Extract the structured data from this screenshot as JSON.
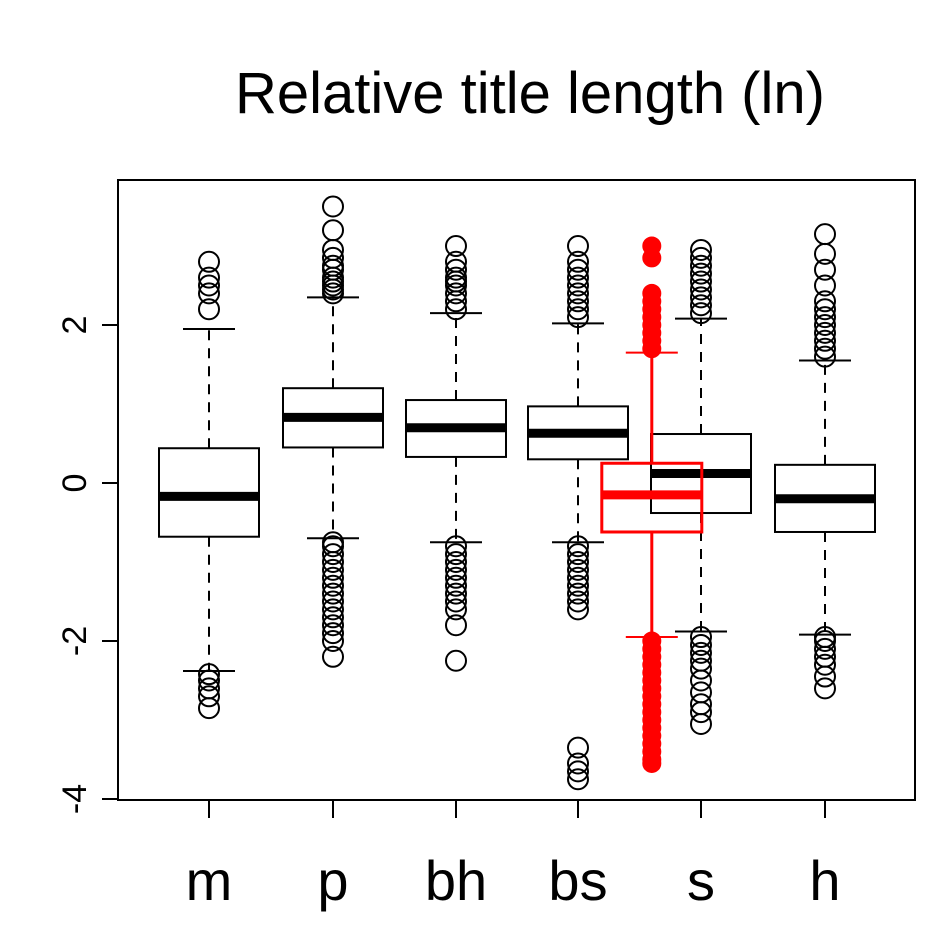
{
  "chart_data": {
    "type": "boxplot",
    "title": "Relative title length (ln)",
    "xlabel": "",
    "ylabel": "",
    "ylim": [
      -4,
      3.8
    ],
    "yticks": [
      -4,
      -2,
      0,
      2
    ],
    "ytick_labels": [
      "-4",
      "-2",
      "0",
      "2"
    ],
    "grid": false,
    "legend": "none",
    "categories": [
      "m",
      "p",
      "bh",
      "bs",
      "s",
      "h"
    ],
    "boxes": [
      {
        "label": "m",
        "whisker_low": -2.38,
        "q1": -0.68,
        "median": -0.17,
        "q3": 0.44,
        "whisker_high": 1.95,
        "outliers": [
          2.2,
          2.4,
          2.5,
          2.6,
          2.8,
          -2.42,
          -2.5,
          -2.6,
          -2.7,
          -2.85
        ]
      },
      {
        "label": "p",
        "whisker_low": -0.7,
        "q1": 0.45,
        "median": 0.83,
        "q3": 1.2,
        "whisker_high": 2.35,
        "outliers": [
          2.4,
          2.45,
          2.5,
          2.55,
          2.6,
          2.7,
          2.75,
          2.85,
          2.95,
          3.2,
          3.5,
          -0.75,
          -0.8,
          -0.9,
          -1.0,
          -1.1,
          -1.2,
          -1.3,
          -1.4,
          -1.5,
          -1.6,
          -1.7,
          -1.8,
          -1.9,
          -2.0,
          -2.2
        ]
      },
      {
        "label": "bh",
        "whisker_low": -0.75,
        "q1": 0.33,
        "median": 0.7,
        "q3": 1.05,
        "whisker_high": 2.15,
        "outliers": [
          2.2,
          2.3,
          2.4,
          2.5,
          2.55,
          2.6,
          2.7,
          2.8,
          3.0,
          -0.8,
          -0.9,
          -1.0,
          -1.1,
          -1.2,
          -1.3,
          -1.4,
          -1.5,
          -1.6,
          -1.8,
          -2.25
        ]
      },
      {
        "label": "bs",
        "whisker_low": -0.75,
        "q1": 0.3,
        "median": 0.63,
        "q3": 0.97,
        "whisker_high": 2.02,
        "outliers": [
          2.1,
          2.2,
          2.3,
          2.4,
          2.5,
          2.6,
          2.7,
          2.8,
          3.0,
          -0.8,
          -0.9,
          -1.0,
          -1.1,
          -1.2,
          -1.3,
          -1.4,
          -1.5,
          -1.6,
          -3.35,
          -3.55,
          -3.65,
          -3.75
        ]
      },
      {
        "label": "s",
        "whisker_low": -1.88,
        "q1": -0.38,
        "median": 0.12,
        "q3": 0.62,
        "whisker_high": 2.08,
        "outliers": [
          2.15,
          2.25,
          2.35,
          2.45,
          2.55,
          2.65,
          2.75,
          2.85,
          2.95,
          -1.95,
          -2.05,
          -2.15,
          -2.25,
          -2.35,
          -2.5,
          -2.65,
          -2.8,
          -2.9,
          -3.05
        ]
      },
      {
        "label": "h",
        "whisker_low": -1.92,
        "q1": -0.62,
        "median": -0.2,
        "q3": 0.23,
        "whisker_high": 1.55,
        "outliers": [
          1.6,
          1.7,
          1.8,
          1.9,
          2.0,
          2.1,
          2.2,
          2.3,
          2.5,
          2.7,
          2.9,
          3.15,
          -1.95,
          -2.0,
          -2.1,
          -2.2,
          -2.3,
          -2.45,
          -2.6
        ]
      }
    ],
    "overlay": {
      "color": "#ff0000",
      "position": 4.6,
      "whisker_low": -1.95,
      "q1": -0.62,
      "median": -0.15,
      "q3": 0.25,
      "whisker_high": 1.65,
      "outliers": [
        1.7,
        1.8,
        1.9,
        2.0,
        2.1,
        2.2,
        2.3,
        2.4,
        2.85,
        3.0,
        -2.0,
        -2.1,
        -2.2,
        -2.3,
        -2.4,
        -2.5,
        -2.6,
        -2.7,
        -2.8,
        -2.9,
        -3.0,
        -3.1,
        -3.2,
        -3.3,
        -3.4,
        -3.5,
        -3.55
      ]
    }
  }
}
